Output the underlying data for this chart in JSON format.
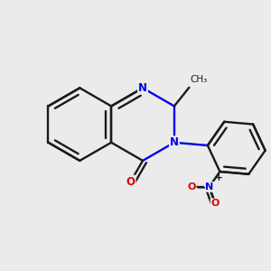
{
  "background_color": "#ebebeb",
  "bond_color": "#1a1a1a",
  "N_color": "#0000ee",
  "O_color": "#dd0000",
  "lw": 1.7,
  "figsize": [
    3.0,
    3.0
  ],
  "dpi": 100,
  "xlim": [
    -0.72,
    0.72
  ],
  "ylim": [
    -0.58,
    0.58
  ],
  "ring_r": 0.195,
  "ph_r": 0.155
}
